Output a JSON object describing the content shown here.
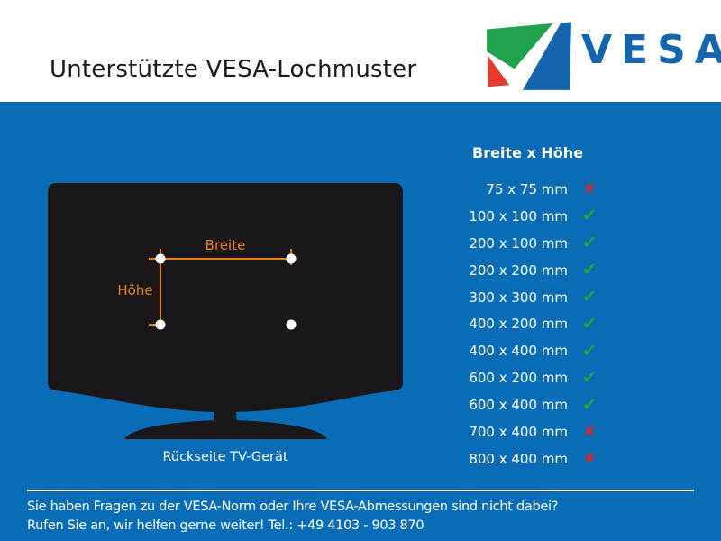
{
  "header": {
    "title": "Unterstützte VESA-Lochmuster",
    "logo_wordmark": "VESA"
  },
  "colors": {
    "background": "#086DB6",
    "tv_black": "#1A171B",
    "accent_orange": "#E8820C",
    "check_green": "#29A23C",
    "cross_red": "#E6231E",
    "logo_blue": "#1565AE",
    "logo_green": "#21A24C",
    "logo_red": "#E8392F"
  },
  "diagram": {
    "width_label": "Breite",
    "height_label": "Höhe",
    "caption": "Rückseite TV-Gerät"
  },
  "table": {
    "header": "Breite x Höhe",
    "check_glyph": "✔",
    "cross_glyph": "✘",
    "rows": [
      {
        "size": "75 x 75 mm",
        "supported": false
      },
      {
        "size": "100 x 100 mm",
        "supported": true
      },
      {
        "size": "200 x 100 mm",
        "supported": true
      },
      {
        "size": "200 x 200 mm",
        "supported": true
      },
      {
        "size": "300 x 300 mm",
        "supported": true
      },
      {
        "size": "400 x 200 mm",
        "supported": true
      },
      {
        "size": "400 x 400 mm",
        "supported": true
      },
      {
        "size": "600 x 200 mm",
        "supported": true
      },
      {
        "size": "600 x 400 mm",
        "supported": true
      },
      {
        "size": "700 x 400 mm",
        "supported": false
      },
      {
        "size": "800 x 400 mm",
        "supported": false
      }
    ]
  },
  "footer": {
    "line1": "Sie haben Fragen zu der VESA-Norm oder Ihre VESA-Abmessungen sind nicht dabei?",
    "line2": "Rufen Sie an, wir helfen gerne weiter! Tel.: +49 4103 - 903 870"
  }
}
